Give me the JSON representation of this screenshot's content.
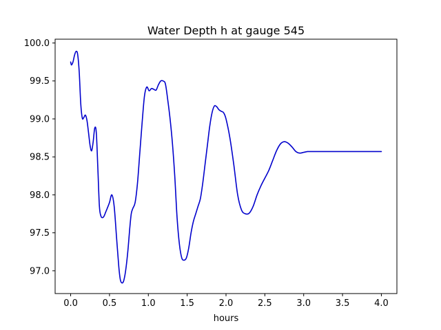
{
  "chart_data": {
    "type": "line",
    "title": "Water Depth h at gauge 545",
    "xlabel": "hours",
    "ylabel": "",
    "xlim": [
      -0.2,
      4.2
    ],
    "ylim": [
      96.7,
      100.05
    ],
    "xticks": [
      0.0,
      0.5,
      1.0,
      1.5,
      2.0,
      2.5,
      3.0,
      3.5,
      4.0
    ],
    "xtick_labels": [
      "0.0",
      "0.5",
      "1.0",
      "1.5",
      "2.0",
      "2.5",
      "3.0",
      "3.5",
      "4.0"
    ],
    "yticks": [
      97.0,
      97.5,
      98.0,
      98.5,
      99.0,
      99.5,
      100.0
    ],
    "ytick_labels": [
      "97.0",
      "97.5",
      "98.0",
      "98.5",
      "99.0",
      "99.5",
      "100.0"
    ],
    "grid": false,
    "series": [
      {
        "color": "#0000cc",
        "x": [
          0.0,
          0.01,
          0.03,
          0.05,
          0.07,
          0.09,
          0.11,
          0.13,
          0.15,
          0.17,
          0.19,
          0.21,
          0.23,
          0.25,
          0.27,
          0.29,
          0.31,
          0.33,
          0.35,
          0.37,
          0.39,
          0.41,
          0.43,
          0.45,
          0.47,
          0.5,
          0.53,
          0.56,
          0.59,
          0.62,
          0.64,
          0.66,
          0.68,
          0.7,
          0.72,
          0.74,
          0.76,
          0.78,
          0.8,
          0.83,
          0.86,
          0.89,
          0.92,
          0.95,
          0.98,
          1.01,
          1.04,
          1.07,
          1.1,
          1.13,
          1.16,
          1.19,
          1.22,
          1.25,
          1.28,
          1.31,
          1.34,
          1.37,
          1.4,
          1.43,
          1.46,
          1.49,
          1.52,
          1.55,
          1.58,
          1.61,
          1.64,
          1.67,
          1.7,
          1.73,
          1.76,
          1.79,
          1.82,
          1.85,
          1.88,
          1.91,
          1.94,
          1.97,
          2.0,
          2.05,
          2.1,
          2.15,
          2.2,
          2.25,
          2.3,
          2.35,
          2.4,
          2.45,
          2.5,
          2.55,
          2.6,
          2.65,
          2.7,
          2.75,
          2.8,
          2.85,
          2.9,
          2.95,
          3.0,
          3.05,
          3.1,
          3.15,
          3.2,
          3.25,
          3.3,
          3.35,
          3.4,
          3.45,
          3.5,
          3.55,
          3.6,
          3.65,
          3.7,
          3.75,
          3.8,
          3.85,
          3.9,
          3.95,
          4.0
        ],
        "y": [
          99.75,
          99.71,
          99.75,
          99.84,
          99.89,
          99.85,
          99.62,
          99.2,
          99.01,
          99.02,
          99.05,
          98.98,
          98.82,
          98.65,
          98.58,
          98.7,
          98.88,
          98.82,
          98.35,
          97.85,
          97.72,
          97.7,
          97.72,
          97.77,
          97.82,
          97.9,
          98.0,
          97.85,
          97.45,
          97.05,
          96.88,
          96.84,
          96.86,
          96.95,
          97.1,
          97.3,
          97.55,
          97.75,
          97.82,
          97.9,
          98.15,
          98.55,
          98.95,
          99.3,
          99.42,
          99.37,
          99.4,
          99.39,
          99.38,
          99.45,
          99.5,
          99.5,
          99.46,
          99.25,
          99.0,
          98.68,
          98.25,
          97.7,
          97.35,
          97.17,
          97.14,
          97.17,
          97.3,
          97.5,
          97.65,
          97.75,
          97.85,
          97.95,
          98.15,
          98.4,
          98.65,
          98.9,
          99.08,
          99.17,
          99.16,
          99.12,
          99.1,
          99.08,
          99.0,
          98.75,
          98.4,
          98.0,
          97.8,
          97.75,
          97.76,
          97.85,
          98.0,
          98.12,
          98.22,
          98.32,
          98.45,
          98.58,
          98.67,
          98.7,
          98.68,
          98.63,
          98.57,
          98.55,
          98.56,
          98.57,
          98.57,
          98.57,
          98.57,
          98.57,
          98.57,
          98.57,
          98.57,
          98.57,
          98.57,
          98.57,
          98.57,
          98.57,
          98.57,
          98.57,
          98.57,
          98.57,
          98.57,
          98.57,
          98.57
        ]
      }
    ]
  }
}
